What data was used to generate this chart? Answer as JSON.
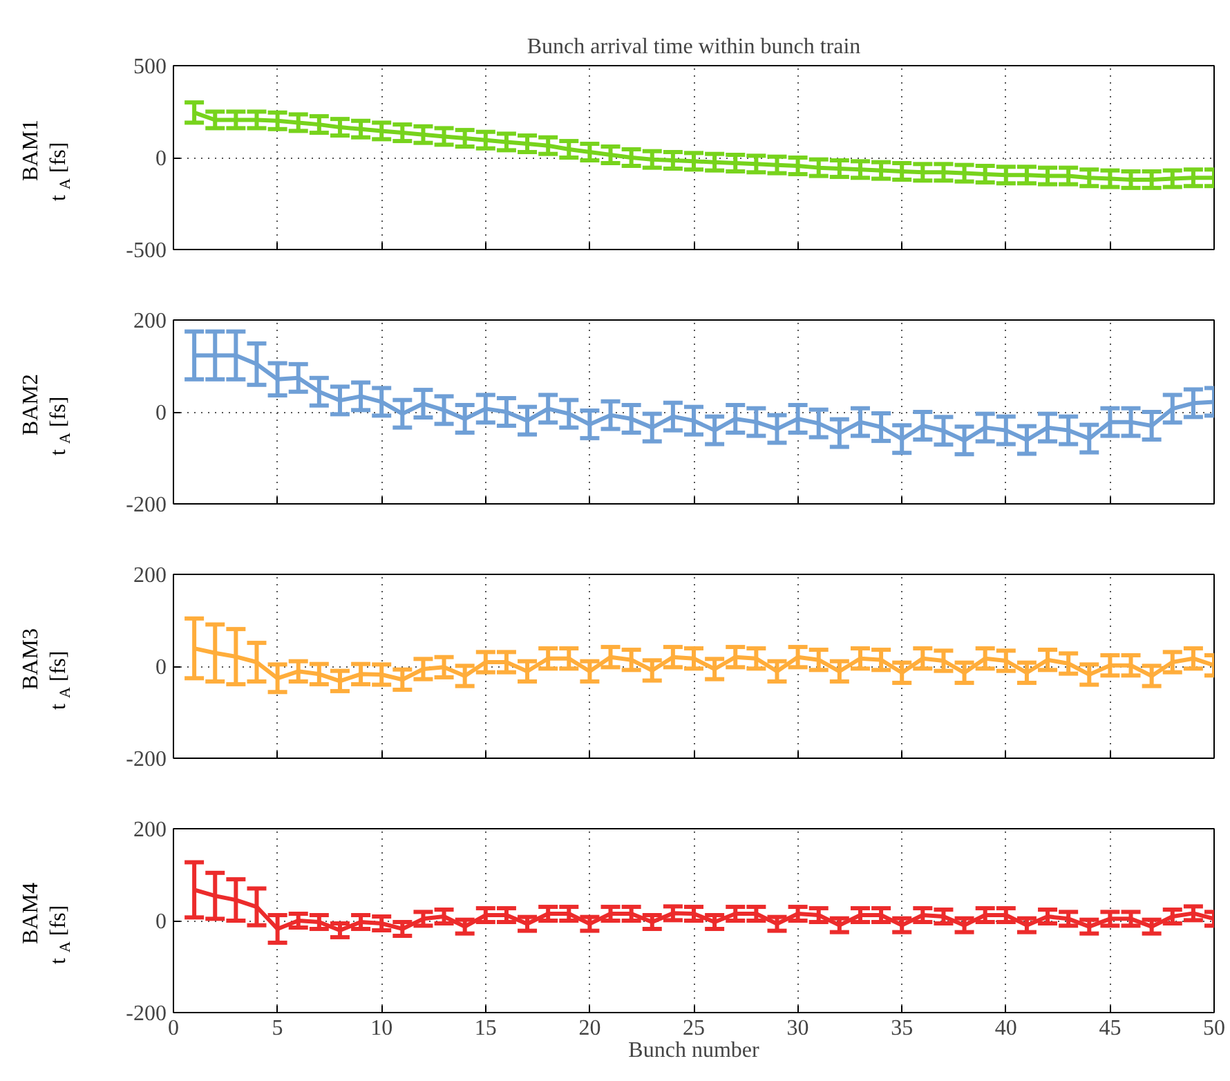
{
  "chart_data": [
    {
      "type": "line",
      "title": "Bunch arrival time within bunch train",
      "ylabel": "BAM1\nt$_{A}$ [fs]",
      "xlim": [
        0,
        50
      ],
      "xticks": [
        0,
        5,
        10,
        15,
        20,
        25,
        30,
        35,
        40,
        45,
        50
      ],
      "ylim": [
        -500,
        500
      ],
      "yticks": [
        -500,
        0,
        500
      ],
      "grid": true,
      "tick_labels": "y",
      "marker": "none",
      "x": [
        1,
        2,
        3,
        4,
        5,
        6,
        7,
        8,
        9,
        10,
        11,
        12,
        13,
        14,
        15,
        16,
        17,
        18,
        19,
        20,
        21,
        22,
        23,
        24,
        25,
        26,
        27,
        28,
        29,
        30,
        31,
        32,
        33,
        34,
        35,
        36,
        37,
        38,
        39,
        40,
        41,
        42,
        43,
        44,
        45,
        46,
        47,
        48,
        49,
        50
      ],
      "series": [
        {
          "color": "#77d31c",
          "values": [
            245,
            205,
            205,
            205,
            200,
            190,
            180,
            165,
            155,
            145,
            135,
            125,
            115,
            105,
            95,
            85,
            75,
            65,
            45,
            30,
            15,
            0,
            -10,
            -15,
            -20,
            -25,
            -30,
            -35,
            -40,
            -45,
            -55,
            -60,
            -65,
            -70,
            -75,
            -80,
            -80,
            -85,
            -90,
            -95,
            -95,
            -100,
            -100,
            -110,
            -115,
            -120,
            -120,
            -115,
            -110,
            -110
          ],
          "errors": [
            55,
            45,
            45,
            45,
            45,
            45,
            45,
            45,
            45,
            45,
            45,
            45,
            45,
            45,
            45,
            45,
            45,
            45,
            45,
            45,
            45,
            45,
            45,
            45,
            45,
            45,
            45,
            45,
            45,
            45,
            45,
            45,
            45,
            45,
            45,
            45,
            45,
            45,
            45,
            45,
            45,
            45,
            45,
            45,
            45,
            45,
            45,
            45,
            45,
            45
          ]
        }
      ]
    },
    {
      "type": "line",
      "ylabel": "BAM2\nt$_{A}$ [fs]",
      "xlim": [
        0,
        50
      ],
      "xticks": [
        0,
        5,
        10,
        15,
        20,
        25,
        30,
        35,
        40,
        45,
        50
      ],
      "ylim": [
        -200,
        200
      ],
      "yticks": [
        -200,
        0,
        200
      ],
      "grid": true,
      "tick_labels": "y",
      "marker": "none",
      "x": [
        1,
        2,
        3,
        4,
        5,
        6,
        7,
        8,
        9,
        10,
        11,
        12,
        13,
        14,
        15,
        16,
        17,
        18,
        19,
        20,
        21,
        22,
        23,
        24,
        25,
        26,
        27,
        28,
        29,
        30,
        31,
        32,
        33,
        34,
        35,
        36,
        37,
        38,
        39,
        40,
        41,
        42,
        43,
        44,
        45,
        46,
        47,
        48,
        49,
        50
      ],
      "series": [
        {
          "color": "#6f9fd6",
          "values": [
            123,
            123,
            123,
            104,
            71,
            74,
            44,
            25,
            34,
            22,
            -4,
            18,
            4,
            -15,
            7,
            0,
            -19,
            7,
            -4,
            -27,
            -7,
            -15,
            -34,
            -10,
            -19,
            -40,
            -15,
            -22,
            -37,
            -15,
            -25,
            -46,
            -22,
            -33,
            -59,
            -30,
            -41,
            -62,
            -34,
            -40,
            -61,
            -34,
            -40,
            -58,
            -22,
            -22,
            -30,
            7,
            19,
            22
          ],
          "errors": [
            52,
            52,
            52,
            45,
            35,
            30,
            30,
            30,
            30,
            30,
            30,
            30,
            30,
            30,
            30,
            30,
            30,
            30,
            30,
            30,
            30,
            30,
            30,
            30,
            30,
            30,
            30,
            30,
            30,
            30,
            30,
            30,
            30,
            30,
            30,
            30,
            30,
            30,
            30,
            30,
            30,
            30,
            30,
            30,
            30,
            30,
            30,
            30,
            30,
            30
          ]
        }
      ]
    },
    {
      "type": "line",
      "ylabel": "BAM3\nt$_{A}$ [fs]",
      "xlim": [
        0,
        50
      ],
      "xticks": [
        0,
        5,
        10,
        15,
        20,
        25,
        30,
        35,
        40,
        45,
        50
      ],
      "ylim": [
        -200,
        200
      ],
      "yticks": [
        -200,
        0,
        200
      ],
      "grid": true,
      "tick_labels": "y",
      "marker": "none",
      "x": [
        1,
        2,
        3,
        4,
        5,
        6,
        7,
        8,
        9,
        10,
        11,
        12,
        13,
        14,
        15,
        16,
        17,
        18,
        19,
        20,
        21,
        22,
        23,
        24,
        25,
        26,
        27,
        28,
        29,
        30,
        31,
        32,
        33,
        34,
        35,
        36,
        37,
        38,
        39,
        40,
        41,
        42,
        43,
        44,
        45,
        46,
        47,
        48,
        49,
        50
      ],
      "series": [
        {
          "color": "#ffad3b",
          "values": [
            39,
            29,
            21,
            9,
            -26,
            -11,
            -17,
            -32,
            -17,
            -18,
            -29,
            -6,
            -2,
            -21,
            9,
            9,
            -11,
            17,
            17,
            -11,
            20,
            14,
            -9,
            20,
            17,
            -6,
            20,
            17,
            -11,
            20,
            14,
            -11,
            17,
            14,
            -14,
            17,
            12,
            -14,
            17,
            12,
            -14,
            14,
            6,
            -18,
            2,
            2,
            -21,
            9,
            17,
            2
          ],
          "errors": [
            65,
            62,
            60,
            42,
            30,
            22,
            22,
            22,
            22,
            22,
            22,
            22,
            22,
            22,
            22,
            22,
            22,
            22,
            22,
            22,
            22,
            22,
            22,
            22,
            22,
            22,
            22,
            22,
            22,
            22,
            22,
            22,
            22,
            22,
            22,
            22,
            22,
            22,
            22,
            22,
            22,
            22,
            22,
            22,
            22,
            22,
            22,
            22,
            22,
            22
          ]
        }
      ]
    },
    {
      "type": "line",
      "xlabel": "Bunch number",
      "ylabel": "BAM4\nt$_{A}$ [fs]",
      "xlim": [
        0,
        50
      ],
      "xticks": [
        0,
        5,
        10,
        15,
        20,
        25,
        30,
        35,
        40,
        45,
        50
      ],
      "ylim": [
        -200,
        200
      ],
      "yticks": [
        -200,
        0,
        200
      ],
      "grid": true,
      "marker": "none",
      "x": [
        1,
        2,
        3,
        4,
        5,
        6,
        7,
        8,
        9,
        10,
        11,
        12,
        13,
        14,
        15,
        16,
        17,
        18,
        19,
        20,
        21,
        22,
        23,
        24,
        25,
        26,
        27,
        28,
        29,
        30,
        31,
        32,
        33,
        34,
        35,
        36,
        37,
        38,
        39,
        40,
        41,
        42,
        43,
        44,
        45,
        46,
        47,
        48,
        49,
        50
      ],
      "series": [
        {
          "color": "#ec2b2b",
          "values": [
            67,
            54,
            45,
            30,
            -18,
            0,
            -3,
            -21,
            -3,
            -6,
            -18,
            4,
            9,
            -13,
            12,
            12,
            -7,
            15,
            15,
            -7,
            15,
            15,
            -3,
            16,
            15,
            -3,
            15,
            15,
            -7,
            15,
            12,
            -10,
            12,
            12,
            -10,
            12,
            9,
            -10,
            12,
            12,
            -10,
            9,
            4,
            -13,
            4,
            4,
            -13,
            9,
            16,
            4
          ],
          "errors": [
            60,
            50,
            45,
            40,
            30,
            15,
            15,
            15,
            15,
            15,
            15,
            15,
            15,
            15,
            15,
            15,
            15,
            15,
            15,
            15,
            15,
            15,
            15,
            15,
            15,
            15,
            15,
            15,
            15,
            15,
            15,
            15,
            15,
            15,
            15,
            15,
            15,
            15,
            15,
            15,
            15,
            15,
            15,
            15,
            15,
            15,
            15,
            15,
            15,
            15
          ]
        }
      ]
    }
  ]
}
